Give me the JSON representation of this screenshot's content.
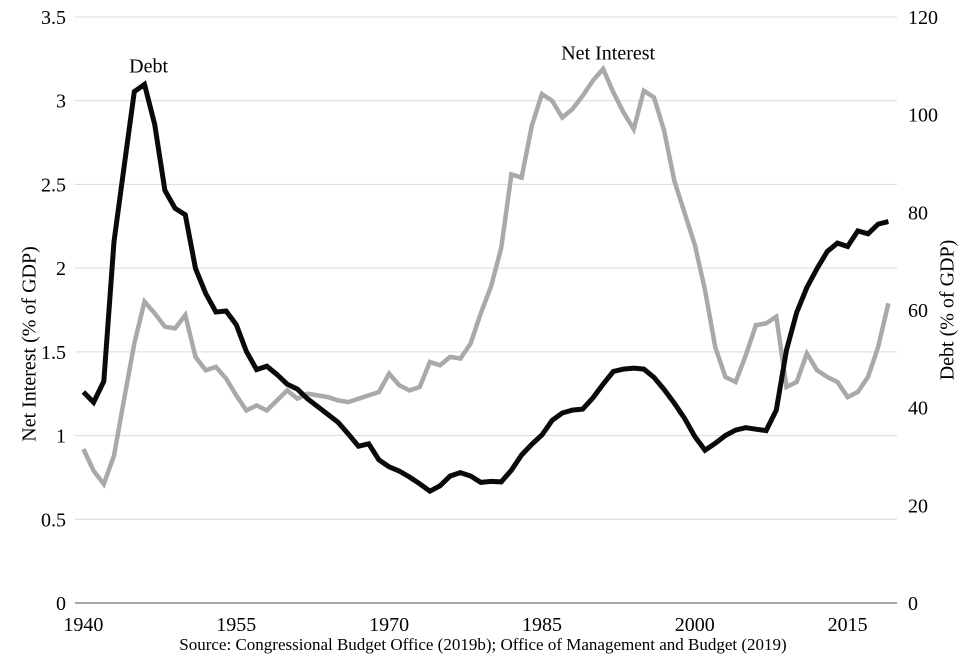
{
  "chart_data": {
    "type": "line",
    "title": "",
    "x": [
      1940,
      1941,
      1942,
      1943,
      1944,
      1945,
      1946,
      1947,
      1948,
      1949,
      1950,
      1951,
      1952,
      1953,
      1954,
      1955,
      1956,
      1957,
      1958,
      1959,
      1960,
      1961,
      1962,
      1963,
      1964,
      1965,
      1966,
      1967,
      1968,
      1969,
      1970,
      1971,
      1972,
      1973,
      1974,
      1975,
      1976,
      1977,
      1978,
      1979,
      1980,
      1981,
      1982,
      1983,
      1984,
      1985,
      1986,
      1987,
      1988,
      1989,
      1990,
      1991,
      1992,
      1993,
      1994,
      1995,
      1996,
      1997,
      1998,
      1999,
      2000,
      2001,
      2002,
      2003,
      2004,
      2005,
      2006,
      2007,
      2008,
      2009,
      2010,
      2011,
      2012,
      2013,
      2014,
      2015,
      2016,
      2017,
      2018,
      2019
    ],
    "series": [
      {
        "name": "Net Interest",
        "axis": "left",
        "color": "#a9a9a9",
        "stroke_width": 4.5,
        "values": [
          0.92,
          0.79,
          0.71,
          0.88,
          1.22,
          1.55,
          1.8,
          1.73,
          1.65,
          1.64,
          1.72,
          1.47,
          1.39,
          1.41,
          1.34,
          1.24,
          1.15,
          1.18,
          1.15,
          1.21,
          1.27,
          1.22,
          1.25,
          1.24,
          1.23,
          1.21,
          1.2,
          1.22,
          1.24,
          1.26,
          1.37,
          1.3,
          1.27,
          1.29,
          1.44,
          1.42,
          1.47,
          1.46,
          1.55,
          1.73,
          1.89,
          2.12,
          2.56,
          2.54,
          2.85,
          3.04,
          3.0,
          2.9,
          2.95,
          3.03,
          3.12,
          3.19,
          3.05,
          2.93,
          2.83,
          3.06,
          3.02,
          2.82,
          2.52,
          2.33,
          2.14,
          1.87,
          1.53,
          1.35,
          1.32,
          1.48,
          1.66,
          1.67,
          1.71,
          1.29,
          1.32,
          1.49,
          1.39,
          1.35,
          1.32,
          1.23,
          1.26,
          1.35,
          1.53,
          1.79
        ]
      },
      {
        "name": "Debt",
        "axis": "right",
        "color": "#0a0a0a",
        "stroke_width": 5,
        "values": [
          43.2,
          41.1,
          45.4,
          74.0,
          89.5,
          104.7,
          106.2,
          98.0,
          84.5,
          80.8,
          79.5,
          68.5,
          63.4,
          59.6,
          59.8,
          57.0,
          51.5,
          47.8,
          48.5,
          46.8,
          44.8,
          43.8,
          41.8,
          40.2,
          38.6,
          37.0,
          34.6,
          32.1,
          32.6,
          29.3,
          27.9,
          27.0,
          25.8,
          24.4,
          22.9,
          24.0,
          26.0,
          26.7,
          26.0,
          24.7,
          24.9,
          24.8,
          27.2,
          30.3,
          32.5,
          34.4,
          37.4,
          38.9,
          39.5,
          39.7,
          42.0,
          44.8,
          47.4,
          47.9,
          48.1,
          47.9,
          46.2,
          43.7,
          40.9,
          37.8,
          34.1,
          31.3,
          32.7,
          34.3,
          35.4,
          35.9,
          35.6,
          35.3,
          39.5,
          51.8,
          59.5,
          64.6,
          68.5,
          72.0,
          73.7,
          73.0,
          76.2,
          75.6,
          77.6,
          78.1
        ]
      }
    ],
    "left_axis": {
      "label": "Net Interest (% of GDP)",
      "ticks": [
        "0",
        "0.5",
        "1",
        "1.5",
        "2",
        "2.5",
        "3",
        "3.5"
      ],
      "range": [
        0,
        3.5
      ]
    },
    "right_axis": {
      "label": "Debt (% of GDP)",
      "ticks": [
        "0",
        "20",
        "40",
        "60",
        "80",
        "100",
        "120"
      ],
      "range": [
        0,
        120
      ]
    },
    "x_axis": {
      "ticks": [
        "1940",
        "1955",
        "1970",
        "1985",
        "2000",
        "2015"
      ],
      "range": [
        1940,
        2019
      ]
    },
    "annotations": [
      {
        "text": "Debt",
        "year": 1946.4,
        "value_left": 3.2
      },
      {
        "text": "Net Interest",
        "year": 1991.5,
        "value_left": 3.28
      }
    ],
    "source": "Source: Congressional Budget Office (2019b); Office of Management and Budget (2019)",
    "grid": true,
    "legend_position": "none",
    "colors": {
      "grid": "#d9d9d9",
      "axis_line": "#a6a6a6",
      "text": "#000000",
      "background": "#ffffff"
    }
  }
}
